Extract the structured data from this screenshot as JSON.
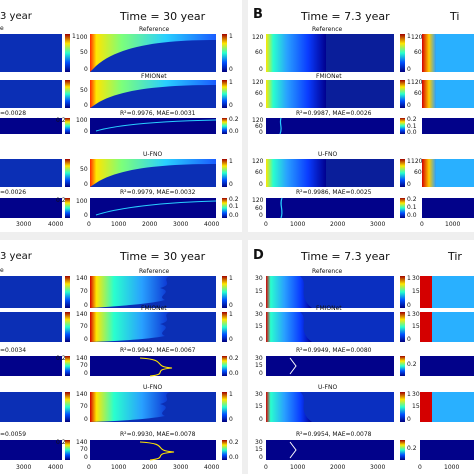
{
  "figure": {
    "panels": {
      "A": {
        "left_time_fragment": "3 year",
        "time_title": "Time = 30 year",
        "row_labels": [
          "Reference",
          "FMIONet",
          "U-FNO"
        ],
        "left_row_fragment": "e",
        "metrics": {
          "fmionet_left": "=0.0028",
          "fmionet": "R²=0.9976, MAE=0.0031",
          "ufno_left": "=0.0026",
          "ufno": "R²=0.9979, MAE=0.0032"
        },
        "y_ticks": [
          "100",
          "50",
          "0"
        ],
        "err_y_ticks": [
          "100",
          "0"
        ],
        "x_ticks": [
          "0",
          "1000",
          "2000",
          "3000",
          "4000"
        ],
        "left_x_ticks": [
          "3000",
          "4000"
        ]
      },
      "B": {
        "letter": "B",
        "time_title": "Time = 7.3 year",
        "right_time_fragment": "Ti",
        "row_labels": [
          "Reference",
          "FMIONet",
          "U-FNO"
        ],
        "metrics": {
          "fmionet": "R²=0.9987, MAE=0.0026",
          "ufno": "R²=0.9986, MAE=0.0025"
        },
        "y_ticks": [
          "120",
          "60",
          "0"
        ],
        "x_ticks": [
          "0",
          "1000",
          "2000",
          "3000"
        ],
        "right_x_ticks": [
          "0",
          "1000"
        ]
      },
      "C": {
        "left_time_fragment": "3 year",
        "time_title": "Time = 30 year",
        "row_labels": [
          "Reference",
          "FMIONet",
          "U-FNO"
        ],
        "left_row_fragment": "e",
        "metrics": {
          "fmionet_left": "=0.0034",
          "fmionet": "R²=0.9942, MAE=0.0067",
          "ufno_left": "=0.0059",
          "ufno": "R²=0.9930, MAE=0.0078"
        },
        "y_ticks": [
          "140",
          "70",
          "0"
        ],
        "x_ticks": [
          "0",
          "1000",
          "2000",
          "3000",
          "4000"
        ],
        "left_x_ticks": [
          "3000",
          "4000"
        ]
      },
      "D": {
        "letter": "D",
        "time_title": "Time = 7.3 year",
        "right_time_fragment": "Tir",
        "row_labels": [
          "Reference",
          "FMIONet",
          "U-FNO"
        ],
        "metrics": {
          "fmionet": "R²=0.9949, MAE=0.0080",
          "ufno": "R²=0.9954, MAE=0.0078"
        },
        "y_ticks": [
          "30",
          "15",
          "0"
        ],
        "x_ticks": [
          "0",
          "1000",
          "2000",
          "3000"
        ],
        "right_x_ticks": [
          "0",
          "1000"
        ]
      }
    },
    "colorbar": {
      "main_ticks": [
        "1",
        "0"
      ],
      "error_ticks": [
        "0.2",
        "0.1",
        "0.0"
      ]
    },
    "colors": {
      "dark_blue": "#00007f",
      "mid_blue": "#0a3cff",
      "cyan": "#29d0ff",
      "yellow": "#ffe600",
      "red": "#d40000"
    }
  }
}
